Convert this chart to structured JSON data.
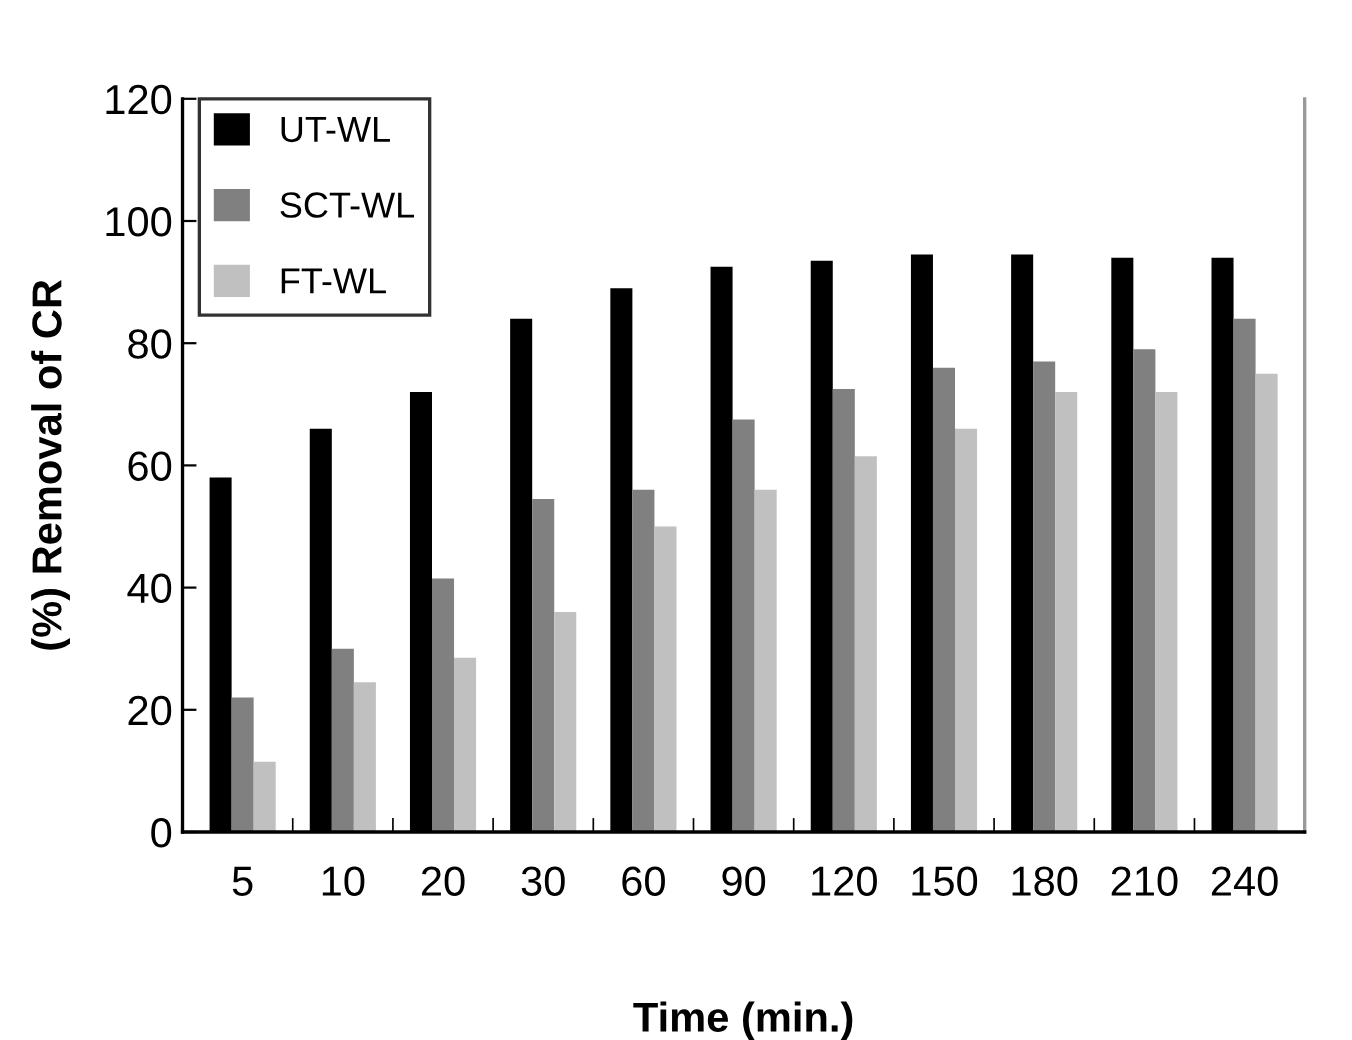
{
  "chart_data": {
    "type": "bar",
    "xlabel": "Time (min.)",
    "ylabel": "(%) Removal of CR",
    "categories": [
      "5",
      "10",
      "20",
      "30",
      "60",
      "90",
      "120",
      "150",
      "180",
      "210",
      "240"
    ],
    "series": [
      {
        "name": "UT-WL",
        "color": "#000000",
        "values": [
          58,
          66,
          72,
          84,
          89,
          92.5,
          93.5,
          94.5,
          94.5,
          94,
          94
        ]
      },
      {
        "name": "SCT-WL",
        "color": "#808080",
        "values": [
          22,
          30,
          41.5,
          54.5,
          56,
          67.5,
          72.5,
          76,
          77,
          79,
          84
        ]
      },
      {
        "name": "FT-WL",
        "color": "#c0c0c0",
        "values": [
          11.5,
          24.5,
          28.5,
          36,
          50,
          56,
          61.5,
          66,
          72,
          72,
          75
        ]
      }
    ],
    "ylim": [
      0,
      120
    ],
    "yticks": [
      0,
      20,
      40,
      60,
      80,
      100,
      120
    ],
    "grid": false,
    "legend": "top left"
  }
}
